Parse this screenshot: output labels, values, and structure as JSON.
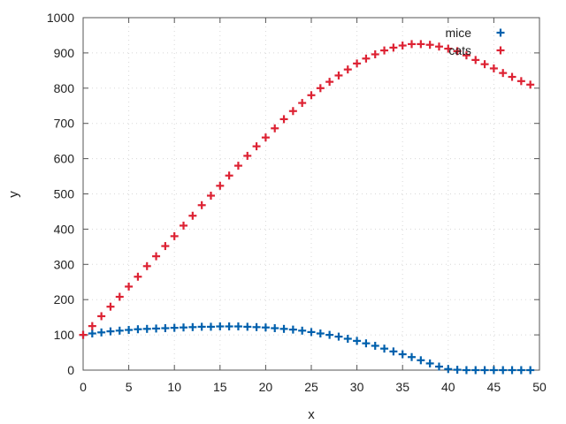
{
  "chart_data": {
    "type": "scatter",
    "title": "",
    "xlabel": "x",
    "ylabel": "y",
    "xlim": [
      0,
      50
    ],
    "ylim": [
      0,
      1000
    ],
    "xticks": [
      0,
      5,
      10,
      15,
      20,
      25,
      30,
      35,
      40,
      45,
      50
    ],
    "yticks": [
      0,
      100,
      200,
      300,
      400,
      500,
      600,
      700,
      800,
      900,
      1000
    ],
    "grid": true,
    "legend_position": "top-right",
    "marker": "plus",
    "x": [
      0,
      1,
      2,
      3,
      4,
      5,
      6,
      7,
      8,
      9,
      10,
      11,
      12,
      13,
      14,
      15,
      16,
      17,
      18,
      19,
      20,
      21,
      22,
      23,
      24,
      25,
      26,
      27,
      28,
      29,
      30,
      31,
      32,
      33,
      34,
      35,
      36,
      37,
      38,
      39,
      40,
      41,
      42,
      43,
      44,
      45,
      46,
      47,
      48,
      49
    ],
    "series": [
      {
        "name": "mice",
        "color": "#0060ad",
        "values": [
          100,
          104,
          107,
          110,
          112,
          114,
          116,
          117,
          118,
          119,
          120,
          121,
          122,
          123,
          123,
          124,
          124,
          124,
          123,
          122,
          121,
          119,
          117,
          115,
          112,
          108,
          104,
          100,
          95,
          89,
          83,
          76,
          69,
          61,
          53,
          45,
          37,
          28,
          19,
          10,
          3,
          1,
          0,
          0,
          0,
          0,
          0,
          0,
          0,
          0
        ]
      },
      {
        "name": "cats",
        "color": "#dd2233",
        "values": [
          100,
          125,
          153,
          180,
          208,
          237,
          265,
          295,
          323,
          352,
          380,
          410,
          438,
          468,
          495,
          523,
          552,
          580,
          608,
          635,
          660,
          686,
          712,
          735,
          758,
          780,
          800,
          818,
          836,
          853,
          870,
          884,
          896,
          907,
          915,
          921,
          925,
          925,
          923,
          918,
          912,
          905,
          893,
          880,
          868,
          856,
          843,
          832,
          820,
          810
        ]
      }
    ]
  }
}
